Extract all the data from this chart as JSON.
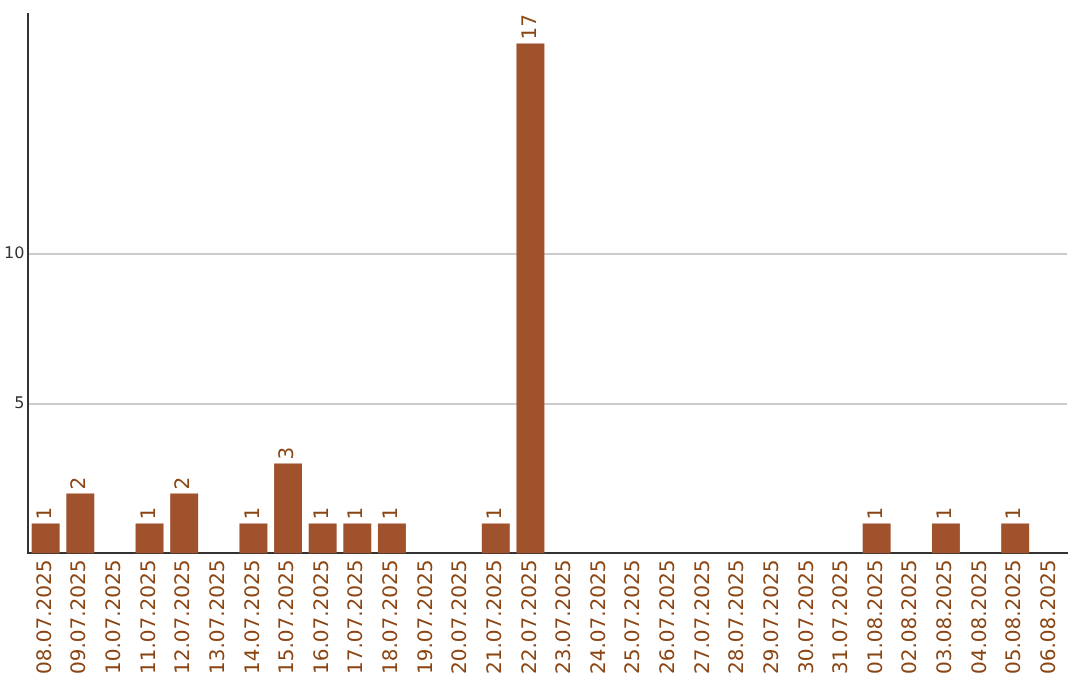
{
  "chart_data": {
    "type": "bar",
    "categories": [
      "08.07.2025",
      "09.07.2025",
      "10.07.2025",
      "11.07.2025",
      "12.07.2025",
      "13.07.2025",
      "14.07.2025",
      "15.07.2025",
      "16.07.2025",
      "17.07.2025",
      "18.07.2025",
      "19.07.2025",
      "20.07.2025",
      "21.07.2025",
      "22.07.2025",
      "23.07.2025",
      "24.07.2025",
      "25.07.2025",
      "26.07.2025",
      "27.07.2025",
      "28.07.2025",
      "29.07.2025",
      "30.07.2025",
      "31.07.2025",
      "01.08.2025",
      "02.08.2025",
      "03.08.2025",
      "04.08.2025",
      "05.08.2025",
      "06.08.2025"
    ],
    "values": [
      1,
      2,
      0,
      1,
      2,
      0,
      1,
      3,
      1,
      1,
      1,
      0,
      0,
      1,
      17,
      0,
      0,
      0,
      0,
      0,
      0,
      0,
      0,
      0,
      1,
      0,
      1,
      0,
      1,
      0
    ],
    "value_labels": [
      "1",
      "2",
      null,
      "1",
      "2",
      null,
      "1",
      "3",
      "1",
      "1",
      "1",
      null,
      null,
      "1",
      "17",
      null,
      null,
      null,
      null,
      null,
      null,
      null,
      null,
      null,
      "1",
      null,
      "1",
      null,
      "1",
      null
    ],
    "color": "#a0522d",
    "ylim": [
      0,
      18
    ],
    "yticks": [
      5,
      10
    ],
    "grid": "y",
    "legend": false
  }
}
